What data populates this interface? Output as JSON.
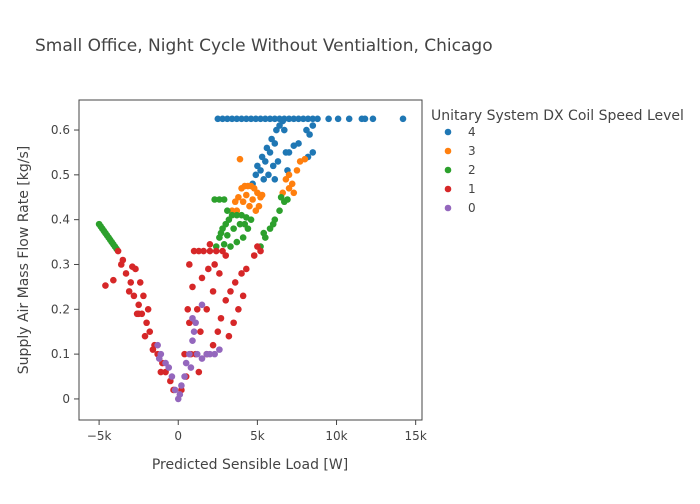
{
  "chart_data": {
    "type": "scatter",
    "title": "Small Office, Night Cycle Without Ventialtion, Chicago",
    "xlabel": "Predicted Sensible Load [W]",
    "ylabel": "Supply Air Mass Flow Rate [kg/s]",
    "xlim": [
      -6270,
      15400
    ],
    "ylim": [
      -0.047,
      0.667
    ],
    "x_ticks": [
      {
        "v": -5000,
        "label": "−5k"
      },
      {
        "v": 0,
        "label": "0"
      },
      {
        "v": 5000,
        "label": "5k"
      },
      {
        "v": 10000,
        "label": "10k"
      },
      {
        "v": 15000,
        "label": "15k"
      }
    ],
    "y_ticks": [
      {
        "v": 0,
        "label": "0"
      },
      {
        "v": 0.1,
        "label": "0.1"
      },
      {
        "v": 0.2,
        "label": "0.2"
      },
      {
        "v": 0.3,
        "label": "0.3"
      },
      {
        "v": 0.4,
        "label": "0.4"
      },
      {
        "v": 0.5,
        "label": "0.5"
      },
      {
        "v": 0.6,
        "label": "0.6"
      }
    ],
    "grid": false,
    "legend": {
      "title": "Unitary System DX Coil Speed Level",
      "placement": "right"
    },
    "series": [
      {
        "name": "4",
        "color": "#1f77b4",
        "points": [
          [
            2500,
            0.625
          ],
          [
            2800,
            0.625
          ],
          [
            3100,
            0.625
          ],
          [
            3400,
            0.625
          ],
          [
            3700,
            0.625
          ],
          [
            4000,
            0.625
          ],
          [
            4300,
            0.625
          ],
          [
            4600,
            0.625
          ],
          [
            4900,
            0.625
          ],
          [
            5200,
            0.625
          ],
          [
            5500,
            0.625
          ],
          [
            5800,
            0.625
          ],
          [
            6100,
            0.625
          ],
          [
            6400,
            0.625
          ],
          [
            6700,
            0.625
          ],
          [
            7000,
            0.625
          ],
          [
            7300,
            0.625
          ],
          [
            7600,
            0.625
          ],
          [
            7900,
            0.625
          ],
          [
            8200,
            0.625
          ],
          [
            8500,
            0.625
          ],
          [
            8800,
            0.625
          ],
          [
            9500,
            0.625
          ],
          [
            10100,
            0.625
          ],
          [
            10800,
            0.625
          ],
          [
            11600,
            0.625
          ],
          [
            11800,
            0.625
          ],
          [
            12300,
            0.625
          ],
          [
            14200,
            0.625
          ],
          [
            4700,
            0.48
          ],
          [
            4900,
            0.5
          ],
          [
            5000,
            0.52
          ],
          [
            5200,
            0.51
          ],
          [
            5300,
            0.54
          ],
          [
            5500,
            0.53
          ],
          [
            5600,
            0.56
          ],
          [
            5800,
            0.55
          ],
          [
            5900,
            0.58
          ],
          [
            6100,
            0.57
          ],
          [
            6200,
            0.6
          ],
          [
            6400,
            0.61
          ],
          [
            6600,
            0.62
          ],
          [
            5700,
            0.5
          ],
          [
            6000,
            0.52
          ],
          [
            6300,
            0.53
          ],
          [
            5400,
            0.49
          ],
          [
            6700,
            0.6
          ],
          [
            7300,
            0.565
          ],
          [
            7600,
            0.57
          ],
          [
            6800,
            0.55
          ],
          [
            7000,
            0.55
          ],
          [
            8100,
            0.6
          ],
          [
            8500,
            0.61
          ],
          [
            8300,
            0.59
          ],
          [
            8500,
            0.55
          ],
          [
            8200,
            0.54
          ],
          [
            6900,
            0.51
          ],
          [
            6100,
            0.49
          ]
        ]
      },
      {
        "name": "3",
        "color": "#ff7f0e",
        "points": [
          [
            3400,
            0.42
          ],
          [
            3600,
            0.44
          ],
          [
            3800,
            0.45
          ],
          [
            4000,
            0.47
          ],
          [
            4200,
            0.475
          ],
          [
            4400,
            0.475
          ],
          [
            4600,
            0.475
          ],
          [
            4800,
            0.47
          ],
          [
            5000,
            0.46
          ],
          [
            5200,
            0.45
          ],
          [
            5100,
            0.43
          ],
          [
            4900,
            0.42
          ],
          [
            4500,
            0.43
          ],
          [
            4100,
            0.44
          ],
          [
            3700,
            0.42
          ],
          [
            4300,
            0.455
          ],
          [
            4700,
            0.445
          ],
          [
            5300,
            0.455
          ],
          [
            3900,
            0.535
          ],
          [
            6600,
            0.46
          ],
          [
            6800,
            0.49
          ],
          [
            7000,
            0.5
          ],
          [
            7200,
            0.48
          ],
          [
            7500,
            0.51
          ],
          [
            7700,
            0.53
          ],
          [
            8000,
            0.535
          ],
          [
            7300,
            0.46
          ],
          [
            7000,
            0.47
          ]
        ]
      },
      {
        "name": "2",
        "color": "#2ca02c",
        "points": [
          [
            -5000,
            0.39
          ],
          [
            -4900,
            0.385
          ],
          [
            -4800,
            0.38
          ],
          [
            -4700,
            0.375
          ],
          [
            -4600,
            0.37
          ],
          [
            -4500,
            0.365
          ],
          [
            -4400,
            0.36
          ],
          [
            -4300,
            0.355
          ],
          [
            -4200,
            0.35
          ],
          [
            -4100,
            0.345
          ],
          [
            -4000,
            0.34
          ],
          [
            -3900,
            0.335
          ],
          [
            2400,
            0.34
          ],
          [
            2600,
            0.36
          ],
          [
            2800,
            0.38
          ],
          [
            3000,
            0.39
          ],
          [
            3200,
            0.4
          ],
          [
            3400,
            0.41
          ],
          [
            3700,
            0.41
          ],
          [
            4000,
            0.41
          ],
          [
            4300,
            0.405
          ],
          [
            4600,
            0.4
          ],
          [
            4400,
            0.38
          ],
          [
            4100,
            0.36
          ],
          [
            3700,
            0.35
          ],
          [
            3300,
            0.34
          ],
          [
            2900,
            0.345
          ],
          [
            3500,
            0.38
          ],
          [
            3900,
            0.39
          ],
          [
            2700,
            0.37
          ],
          [
            3100,
            0.365
          ],
          [
            4200,
            0.39
          ],
          [
            2300,
            0.445
          ],
          [
            2600,
            0.445
          ],
          [
            2900,
            0.445
          ],
          [
            3100,
            0.42
          ],
          [
            5200,
            0.34
          ],
          [
            5500,
            0.36
          ],
          [
            5800,
            0.38
          ],
          [
            6100,
            0.4
          ],
          [
            6400,
            0.42
          ],
          [
            6700,
            0.44
          ],
          [
            6900,
            0.445
          ],
          [
            6500,
            0.45
          ],
          [
            5400,
            0.37
          ],
          [
            6000,
            0.39
          ]
        ]
      },
      {
        "name": "1",
        "color": "#d62728",
        "points": [
          [
            -3800,
            0.33
          ],
          [
            -3500,
            0.31
          ],
          [
            -3300,
            0.28
          ],
          [
            -3600,
            0.3
          ],
          [
            -3000,
            0.26
          ],
          [
            -2800,
            0.23
          ],
          [
            -3100,
            0.24
          ],
          [
            -2500,
            0.21
          ],
          [
            -2300,
            0.19
          ],
          [
            -2600,
            0.19
          ],
          [
            -2000,
            0.17
          ],
          [
            -1800,
            0.15
          ],
          [
            -2100,
            0.14
          ],
          [
            -1500,
            0.12
          ],
          [
            -1300,
            0.1
          ],
          [
            -1600,
            0.11
          ],
          [
            -1000,
            0.08
          ],
          [
            -800,
            0.06
          ],
          [
            -1100,
            0.06
          ],
          [
            -500,
            0.04
          ],
          [
            -300,
            0.02
          ],
          [
            -2700,
            0.29
          ],
          [
            -2900,
            0.295
          ],
          [
            -2400,
            0.26
          ],
          [
            -4600,
            0.253
          ],
          [
            -4100,
            0.265
          ],
          [
            -2500,
            0.19
          ],
          [
            -1900,
            0.2
          ],
          [
            -2200,
            0.23
          ],
          [
            200,
            0.02
          ],
          [
            500,
            0.05
          ],
          [
            800,
            0.1
          ],
          [
            600,
            0.2
          ],
          [
            700,
            0.3
          ],
          [
            1000,
            0.33
          ],
          [
            1300,
            0.33
          ],
          [
            1600,
            0.33
          ],
          [
            2000,
            0.33
          ],
          [
            2400,
            0.33
          ],
          [
            2800,
            0.33
          ],
          [
            3000,
            0.32
          ],
          [
            2600,
            0.28
          ],
          [
            2200,
            0.24
          ],
          [
            1800,
            0.2
          ],
          [
            1400,
            0.15
          ],
          [
            1100,
            0.1
          ],
          [
            900,
            0.25
          ],
          [
            1200,
            0.2
          ],
          [
            1500,
            0.27
          ],
          [
            1900,
            0.29
          ],
          [
            2300,
            0.3
          ],
          [
            2000,
            0.345
          ],
          [
            1300,
            0.06
          ],
          [
            1800,
            0.1
          ],
          [
            2200,
            0.12
          ],
          [
            2700,
            0.18
          ],
          [
            3000,
            0.22
          ],
          [
            3300,
            0.24
          ],
          [
            3600,
            0.26
          ],
          [
            4000,
            0.28
          ],
          [
            4300,
            0.29
          ],
          [
            4800,
            0.32
          ],
          [
            5000,
            0.34
          ],
          [
            5200,
            0.33
          ],
          [
            3800,
            0.2
          ],
          [
            4100,
            0.23
          ],
          [
            3500,
            0.17
          ],
          [
            3200,
            0.14
          ],
          [
            2500,
            0.15
          ],
          [
            700,
            0.17
          ],
          [
            400,
            0.1
          ]
        ]
      },
      {
        "name": "0",
        "color": "#9467bd",
        "points": [
          [
            0,
            0
          ],
          [
            100,
            0.01
          ],
          [
            200,
            0.03
          ],
          [
            400,
            0.05
          ],
          [
            500,
            0.08
          ],
          [
            700,
            0.1
          ],
          [
            900,
            0.13
          ],
          [
            1000,
            0.15
          ],
          [
            900,
            0.18
          ],
          [
            1100,
            0.17
          ],
          [
            1500,
            0.21
          ],
          [
            1200,
            0.1
          ],
          [
            1500,
            0.09
          ],
          [
            1800,
            0.1
          ],
          [
            2000,
            0.1
          ],
          [
            2300,
            0.1
          ],
          [
            2600,
            0.11
          ],
          [
            800,
            0.07
          ],
          [
            -200,
            0.02
          ],
          [
            -400,
            0.05
          ],
          [
            -800,
            0.08
          ],
          [
            -1100,
            0.1
          ],
          [
            -1300,
            0.12
          ],
          [
            -1200,
            0.09
          ],
          [
            -600,
            0.07
          ]
        ]
      }
    ]
  }
}
